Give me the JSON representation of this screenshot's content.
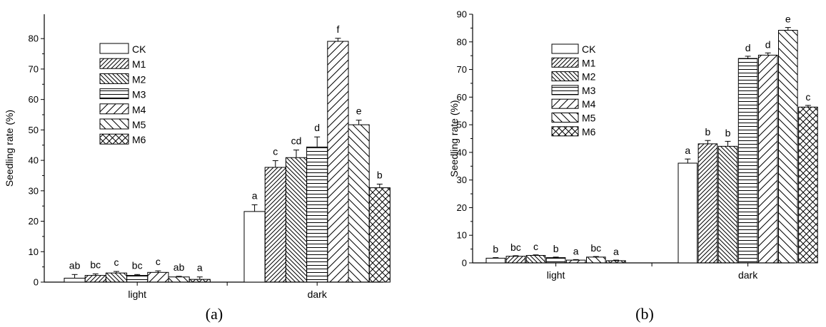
{
  "chart_data": [
    {
      "type": "bar",
      "caption": "(a)",
      "ylabel": "Seedling rate (%)",
      "ylim": [
        0,
        88
      ],
      "yticks": [
        0,
        10,
        20,
        30,
        40,
        50,
        60,
        70,
        80
      ],
      "categories": [
        "light",
        "dark"
      ],
      "legend_position": "top-left",
      "series": [
        {
          "name": "CK",
          "pattern": "none",
          "values": [
            1.3,
            23.2
          ],
          "errors": [
            1.2,
            2.2
          ],
          "labels": [
            "ab",
            "a"
          ]
        },
        {
          "name": "M1",
          "pattern": "diag-right",
          "values": [
            2.2,
            37.7
          ],
          "errors": [
            0.5,
            2.2
          ],
          "labels": [
            "bc",
            "c"
          ]
        },
        {
          "name": "M2",
          "pattern": "diag-left",
          "values": [
            3.0,
            40.9
          ],
          "errors": [
            0.5,
            2.5
          ],
          "labels": [
            "c",
            "cd"
          ]
        },
        {
          "name": "M3",
          "pattern": "horizontal",
          "values": [
            2.2,
            44.4
          ],
          "errors": [
            0.3,
            3.3
          ],
          "labels": [
            "bc",
            "d"
          ]
        },
        {
          "name": "M4",
          "pattern": "diag-right-wide",
          "values": [
            3.2,
            79.1
          ],
          "errors": [
            0.5,
            1.0
          ],
          "labels": [
            "c",
            "f"
          ]
        },
        {
          "name": "M5",
          "pattern": "diag-left-wide",
          "values": [
            1.7,
            51.7
          ],
          "errors": [
            0.2,
            1.5
          ],
          "labels": [
            "ab",
            "e"
          ]
        },
        {
          "name": "M6",
          "pattern": "crosshatch",
          "values": [
            0.9,
            31.0
          ],
          "errors": [
            0.8,
            1.2
          ],
          "labels": [
            "a",
            "b"
          ]
        }
      ]
    },
    {
      "type": "bar",
      "caption": "(b)",
      "ylabel": "Seedling rate (%)",
      "ylim": [
        0,
        90
      ],
      "yticks": [
        0,
        10,
        20,
        30,
        40,
        50,
        60,
        70,
        80,
        90
      ],
      "categories": [
        "light",
        "dark"
      ],
      "legend_position": "top-left",
      "series": [
        {
          "name": "CK",
          "pattern": "none",
          "values": [
            1.7,
            36.1
          ],
          "errors": [
            0.2,
            1.5
          ],
          "labels": [
            "b",
            "a"
          ]
        },
        {
          "name": "M1",
          "pattern": "diag-right",
          "values": [
            2.4,
            43.1
          ],
          "errors": [
            0.2,
            1.2
          ],
          "labels": [
            "bc",
            "b"
          ]
        },
        {
          "name": "M2",
          "pattern": "diag-left",
          "values": [
            2.7,
            42.2
          ],
          "errors": [
            0.2,
            1.8
          ],
          "labels": [
            "c",
            "b"
          ]
        },
        {
          "name": "M3",
          "pattern": "horizontal",
          "values": [
            1.9,
            74.0
          ],
          "errors": [
            0.2,
            0.8
          ],
          "labels": [
            "b",
            "d"
          ]
        },
        {
          "name": "M4",
          "pattern": "diag-right-wide",
          "values": [
            1.0,
            75.2
          ],
          "errors": [
            0.2,
            0.8
          ],
          "labels": [
            "a",
            "d"
          ]
        },
        {
          "name": "M5",
          "pattern": "diag-left-wide",
          "values": [
            2.1,
            84.2
          ],
          "errors": [
            0.2,
            1.0
          ],
          "labels": [
            "bc",
            "e"
          ]
        },
        {
          "name": "M6",
          "pattern": "crosshatch",
          "values": [
            0.8,
            56.4
          ],
          "errors": [
            0.2,
            0.6
          ],
          "labels": [
            "a",
            "c"
          ]
        }
      ]
    }
  ]
}
